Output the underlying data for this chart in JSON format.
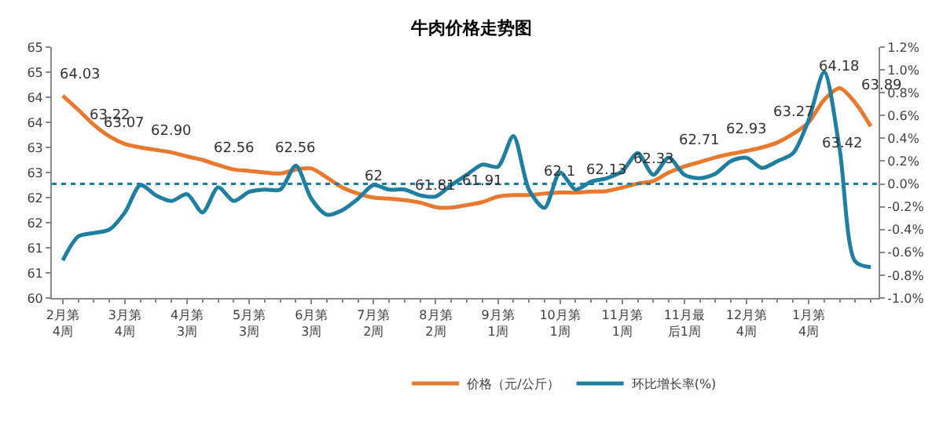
{
  "chart_data": {
    "type": "line",
    "title": "牛肉价格走势图",
    "categories": [
      "2月第4周",
      null,
      null,
      null,
      "3月第4周",
      null,
      null,
      null,
      "4月第3周",
      null,
      null,
      null,
      "5月第3周",
      null,
      null,
      null,
      "6月第3周",
      null,
      null,
      null,
      "7月第2周",
      null,
      null,
      null,
      "8月第2周",
      null,
      null,
      null,
      "9月第1周",
      null,
      null,
      null,
      "10月第1周",
      null,
      null,
      null,
      "11月第1周",
      null,
      null,
      null,
      "11月最后1周",
      null,
      null,
      null,
      "12月第4周",
      null,
      null,
      null,
      "1月第4周",
      null,
      null,
      null,
      null
    ],
    "series": [
      {
        "name": "价格（元/公斤）",
        "color": "#e8792f",
        "values": [
          64.03,
          63.75,
          63.45,
          63.22,
          63.07,
          63.0,
          62.95,
          62.9,
          62.82,
          62.75,
          62.65,
          62.56,
          62.53,
          62.5,
          62.48,
          62.56,
          62.58,
          62.4,
          62.2,
          62.08,
          62.0,
          61.98,
          61.95,
          61.9,
          61.81,
          61.8,
          61.85,
          61.91,
          62.02,
          62.05,
          62.05,
          62.08,
          62.1,
          62.1,
          62.12,
          62.13,
          62.2,
          62.28,
          62.33,
          62.5,
          62.62,
          62.71,
          62.8,
          62.87,
          62.93,
          63.0,
          63.1,
          63.27,
          63.5,
          63.95,
          64.18,
          63.89,
          63.42
        ],
        "value_labels": [
          "64.03",
          null,
          null,
          "63.22",
          "63.07",
          null,
          null,
          "62.90",
          null,
          null,
          null,
          "62.56",
          null,
          null,
          null,
          "62.56",
          null,
          null,
          null,
          null,
          "62",
          null,
          null,
          null,
          "61.81",
          null,
          null,
          "61.91",
          null,
          null,
          null,
          null,
          "62.1",
          null,
          null,
          "62.13",
          null,
          null,
          "62.33",
          null,
          null,
          "62.71",
          null,
          null,
          "62.93",
          null,
          null,
          "63.27",
          null,
          null,
          "64.18",
          "63.89",
          "63.42"
        ]
      },
      {
        "name": "环比增长率(%)",
        "color": "#1f7fa0",
        "axis": "y2",
        "values": [
          -0.67,
          -0.46,
          -0.43,
          -0.4,
          -0.25,
          -0.01,
          -0.1,
          -0.15,
          -0.09,
          -0.25,
          -0.03,
          -0.15,
          -0.07,
          -0.05,
          -0.05,
          0.16,
          -0.13,
          -0.27,
          -0.23,
          -0.13,
          -0.01,
          -0.05,
          -0.05,
          -0.1,
          -0.11,
          -0.01,
          0.08,
          0.17,
          0.15,
          0.42,
          -0.05,
          -0.21,
          0.1,
          -0.05,
          0.02,
          0.05,
          0.11,
          0.27,
          0.08,
          0.23,
          0.08,
          0.05,
          0.09,
          0.2,
          0.23,
          0.14,
          0.2,
          0.27,
          0.56,
          0.98,
          0.3,
          -0.68,
          -0.73
        ]
      }
    ],
    "ylim": [
      60,
      65
    ],
    "yticks": [
      60,
      {
        "value": 60.5,
        "label": "61"
      },
      61,
      {
        "value": 61.5,
        "label": "62"
      },
      62,
      {
        "value": 62.5,
        "label": "63"
      },
      63,
      {
        "value": 63.5,
        "label": "64"
      },
      64,
      {
        "value": 64.5,
        "label": "65"
      },
      65
    ],
    "y2lim": [
      -1.0,
      1.2
    ],
    "y2ticks": [
      {
        "value": -1.0,
        "label": "-1.0%"
      },
      {
        "value": -0.8,
        "label": "-0.8%"
      },
      {
        "value": -0.6,
        "label": "-0.6%"
      },
      {
        "value": -0.4,
        "label": "-0.4%"
      },
      {
        "value": -0.2,
        "label": "-0.2%"
      },
      {
        "value": 0.0,
        "label": "0.0%"
      },
      {
        "value": 0.2,
        "label": "0.2%"
      },
      {
        "value": 0.4,
        "label": "0.4%"
      },
      {
        "value": 0.6,
        "label": "0.6%"
      },
      {
        "value": 0.8,
        "label": "0.8%"
      },
      {
        "value": 1.0,
        "label": "1.0%"
      },
      {
        "value": 1.2,
        "label": "1.2%"
      }
    ],
    "ref_lines": [
      {
        "axis": "y2",
        "value": 0.0,
        "color": "#1f7fa0",
        "line_style": "dotted"
      }
    ],
    "legend": "bottom",
    "marker": "none",
    "line_style": "solid"
  }
}
